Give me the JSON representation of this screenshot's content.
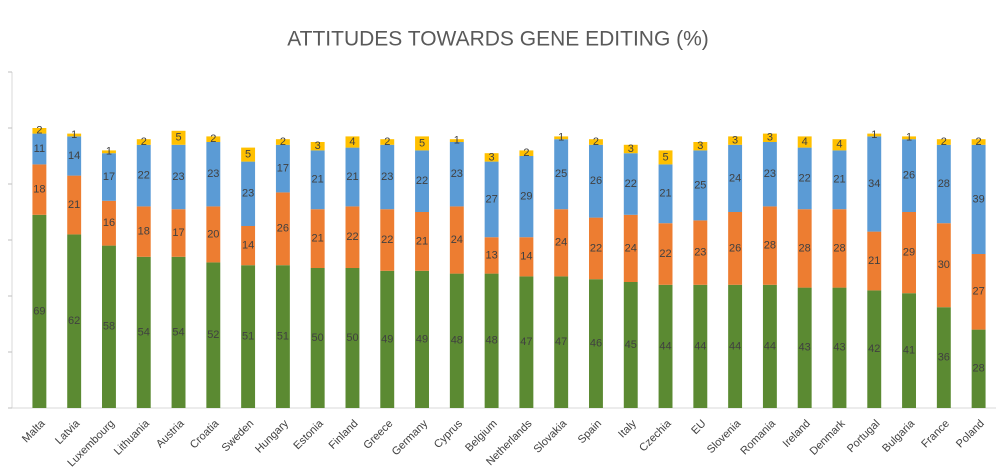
{
  "chart_data": {
    "type": "stacked_bar",
    "title": "ATTITUDES TOWARDS GENE EDITING (%)",
    "categories": [
      "Malta",
      "Latvia",
      "Luxembourg",
      "Lithuania",
      "Austria",
      "Croatia",
      "Sweden",
      "Hungary",
      "Estonia",
      "Finland",
      "Greece",
      "Germany",
      "Cyprus",
      "Belgium",
      "Netherlands",
      "Slovakia",
      "Spain",
      "Italy",
      "Czechia",
      "EU",
      "Slovenia",
      "Romania",
      "Ireland",
      "Denmark",
      "Portugal",
      "Bulgaria",
      "France",
      "Poland"
    ],
    "series": [
      {
        "color": "#5b8a32",
        "values": [
          69,
          62,
          58,
          54,
          54,
          52,
          51,
          51,
          50,
          50,
          49,
          49,
          48,
          48,
          47,
          47,
          46,
          45,
          44,
          44,
          44,
          44,
          43,
          43,
          42,
          41,
          36,
          28
        ]
      },
      {
        "color": "#ed7d31",
        "values": [
          18,
          21,
          16,
          18,
          17,
          20,
          14,
          26,
          21,
          22,
          22,
          21,
          24,
          13,
          14,
          24,
          22,
          24,
          22,
          23,
          26,
          28,
          28,
          28,
          21,
          29,
          30,
          27
        ]
      },
      {
        "color": "#5b9bd5",
        "values": [
          11,
          14,
          17,
          22,
          23,
          23,
          23,
          17,
          21,
          21,
          23,
          22,
          23,
          27,
          29,
          25,
          26,
          22,
          21,
          25,
          24,
          23,
          22,
          21,
          34,
          26,
          28,
          39
        ]
      },
      {
        "color": "#ffc000",
        "values": [
          2,
          1,
          1,
          2,
          5,
          2,
          5,
          2,
          3,
          4,
          2,
          5,
          1,
          3,
          2,
          1,
          2,
          3,
          5,
          3,
          3,
          3,
          4,
          4,
          1,
          1,
          2,
          2
        ]
      }
    ],
    "ylim": [
      0,
      120
    ],
    "yticks": [
      0,
      20,
      40,
      60,
      80,
      100,
      120
    ]
  }
}
